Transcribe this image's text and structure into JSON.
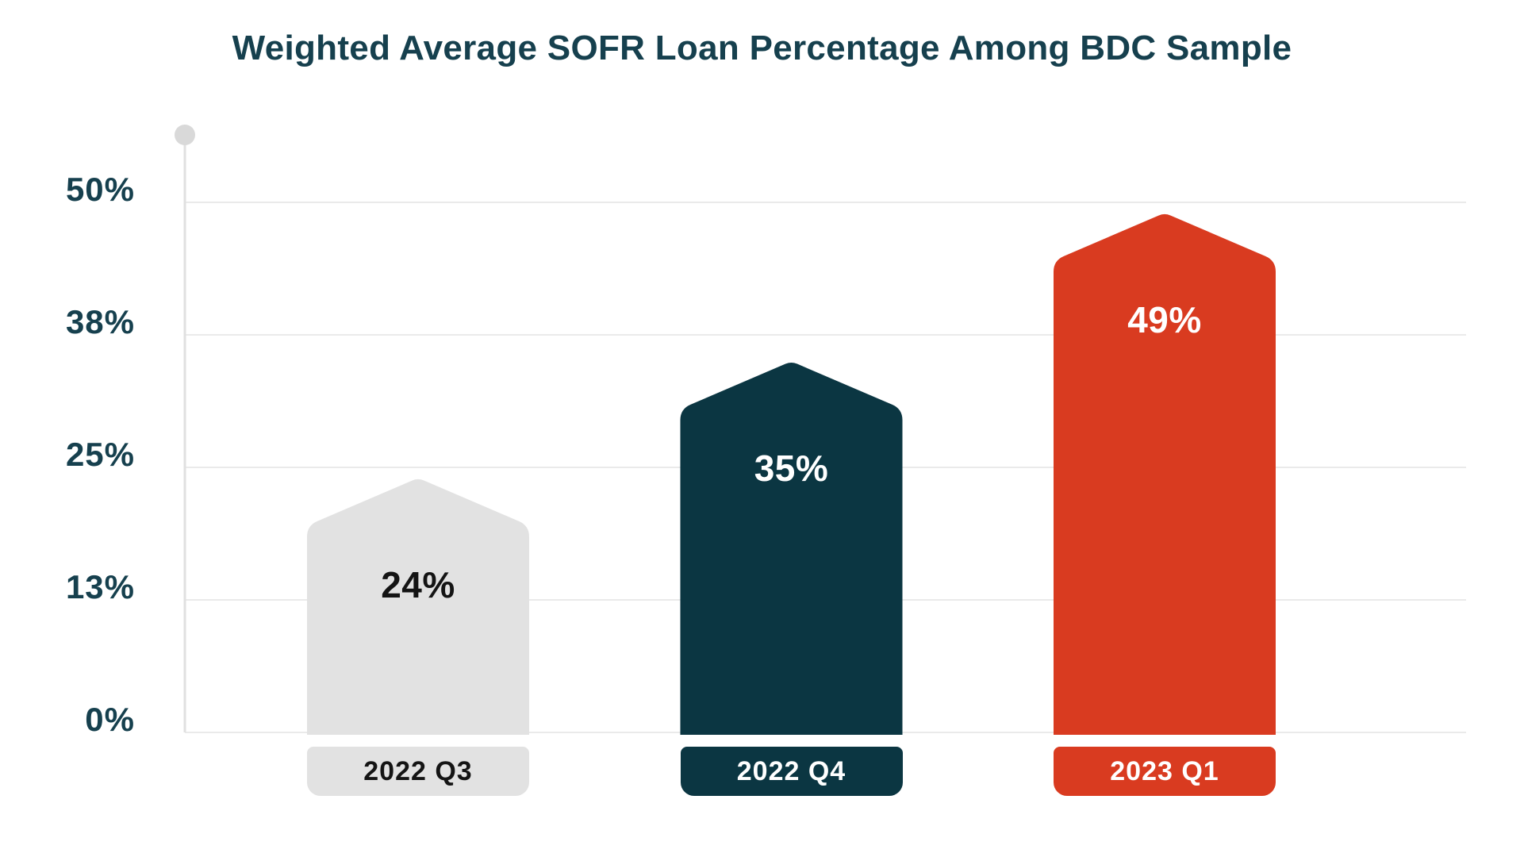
{
  "page": {
    "background_color": "#FFFFFF"
  },
  "chart_data": {
    "type": "bar",
    "title": "Weighted Average SOFR Loan Percentage Among BDC Sample",
    "categories": [
      "2022 Q3",
      "2022 Q4",
      "2023 Q1"
    ],
    "values": [
      24,
      35,
      49
    ],
    "value_labels": [
      "24%",
      "35%",
      "49%"
    ],
    "xlabel": "",
    "ylabel": "",
    "ylim": [
      0,
      56.4
    ],
    "yticks": [
      {
        "label": "50%",
        "value": 50
      },
      {
        "label": "38%",
        "value": 37.5
      },
      {
        "label": "25%",
        "value": 25
      },
      {
        "label": "13%",
        "value": 12.5
      },
      {
        "label": "0%",
        "value": 0
      }
    ],
    "grid": true,
    "legend": false,
    "bar_shape": "pentagon-peaked-top",
    "colors": {
      "bars": [
        "#E2E2E2",
        "#0B3642",
        "#D93B20"
      ],
      "value_label_text": [
        "#141414",
        "#FFFFFF",
        "#FFFFFF"
      ],
      "category_pill_text": [
        "#141414",
        "#FFFFFF",
        "#FFFFFF"
      ],
      "title_text": "#16404E",
      "tick_text": "#16404E",
      "gridline": "#EAEAEA",
      "axis_line": "#E0E0E0",
      "axis_top_dot": "#D9D9D9"
    }
  }
}
